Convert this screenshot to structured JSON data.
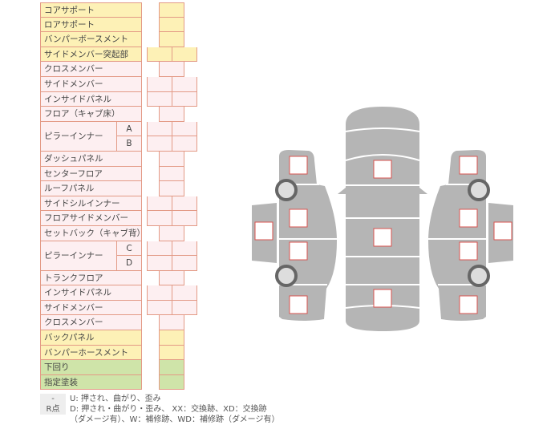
{
  "rows": [
    {
      "label": "コアサポート",
      "color": "yellow",
      "cells": "single"
    },
    {
      "label": "ロアサポート",
      "color": "yellow",
      "cells": "single"
    },
    {
      "label": "バンパーボースメント",
      "color": "yellow",
      "cells": "single"
    },
    {
      "label": "サイドメンバー突起部",
      "color": "yellow",
      "cells": "double"
    },
    {
      "label": "クロスメンバー",
      "color": "pink",
      "cells": "single"
    },
    {
      "label": "サイドメンバー",
      "color": "pink",
      "cells": "double"
    },
    {
      "label": "インサイドパネル",
      "color": "pink",
      "cells": "double"
    },
    {
      "label": "フロア（キャブ床）",
      "color": "pink",
      "cells": "single"
    },
    {
      "label": "ピラーインナー",
      "sub": "A",
      "color": "pink",
      "cells": "double",
      "group_start": true
    },
    {
      "label": "ピラーインナー",
      "sub": "B",
      "color": "pink",
      "cells": "double"
    },
    {
      "label": "ダッシュパネル",
      "color": "pink",
      "cells": "single"
    },
    {
      "label": "センターフロア",
      "color": "pink",
      "cells": "single"
    },
    {
      "label": "ルーフパネル",
      "color": "pink",
      "cells": "single"
    },
    {
      "label": "サイドシルインナー",
      "color": "pink",
      "cells": "double"
    },
    {
      "label": "フロアサイドメンバー",
      "color": "pink",
      "cells": "double"
    },
    {
      "label": "セットバック（キャブ背）",
      "color": "pink",
      "cells": "single"
    },
    {
      "label": "ピラーインナー",
      "sub": "C",
      "color": "pink",
      "cells": "double",
      "group_start": true
    },
    {
      "label": "ピラーインナー",
      "sub": "D",
      "color": "pink",
      "cells": "double"
    },
    {
      "label": "トランクフロア",
      "color": "pink",
      "cells": "single"
    },
    {
      "label": "インサイドパネル",
      "color": "pink",
      "cells": "double"
    },
    {
      "label": "サイドメンバー",
      "color": "pink",
      "cells": "double"
    },
    {
      "label": "クロスメンバー",
      "color": "pink",
      "cells": "single"
    },
    {
      "label": "バックパネル",
      "color": "yellow",
      "cells": "single"
    },
    {
      "label": "バンパーホースメント",
      "color": "yellow",
      "cells": "single"
    },
    {
      "label": "下回り",
      "color": "green",
      "cells": "single"
    },
    {
      "label": "指定塗装",
      "color": "green",
      "cells": "single"
    }
  ],
  "legend": [
    {
      "tag": "-",
      "text": "U: 押され、曲がり、歪み"
    },
    {
      "tag": "R点",
      "text": "D: 押され・曲がり・歪み、 XX：交換跡、XD：交換跡"
    },
    {
      "tag": "",
      "text": "（ダメージ有）、W：補修跡、WD：補修跡（ダメージ有）"
    }
  ],
  "colors": {
    "yellow": "#fdf1b6",
    "pink": "#fdeff1",
    "green": "#cfe4a9",
    "border": "#e39a86",
    "car": "#b5b5b5",
    "mark": "#d9534f"
  }
}
